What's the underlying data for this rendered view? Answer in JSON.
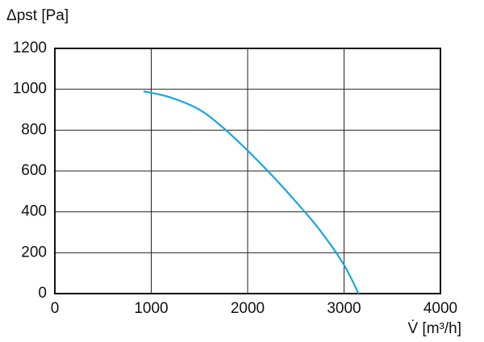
{
  "chart_data": {
    "type": "line",
    "y_label": "Δpst [Pa]",
    "x_label": "V̇ [m³/h]",
    "x": [
      920,
      1200,
      1500,
      1750,
      2000,
      2250,
      2500,
      2750,
      3000,
      3150
    ],
    "series": [
      {
        "color": "#1aa6de",
        "values": [
          990,
          960,
          900,
          810,
          700,
          580,
          450,
          310,
          140,
          0
        ]
      }
    ],
    "xlim": [
      0,
      4000
    ],
    "xticks": [
      0,
      1000,
      2000,
      3000,
      4000
    ],
    "ylim": [
      0,
      1200
    ],
    "yticks": [
      0,
      200,
      400,
      600,
      800,
      1000,
      1200
    ],
    "grid": true
  }
}
